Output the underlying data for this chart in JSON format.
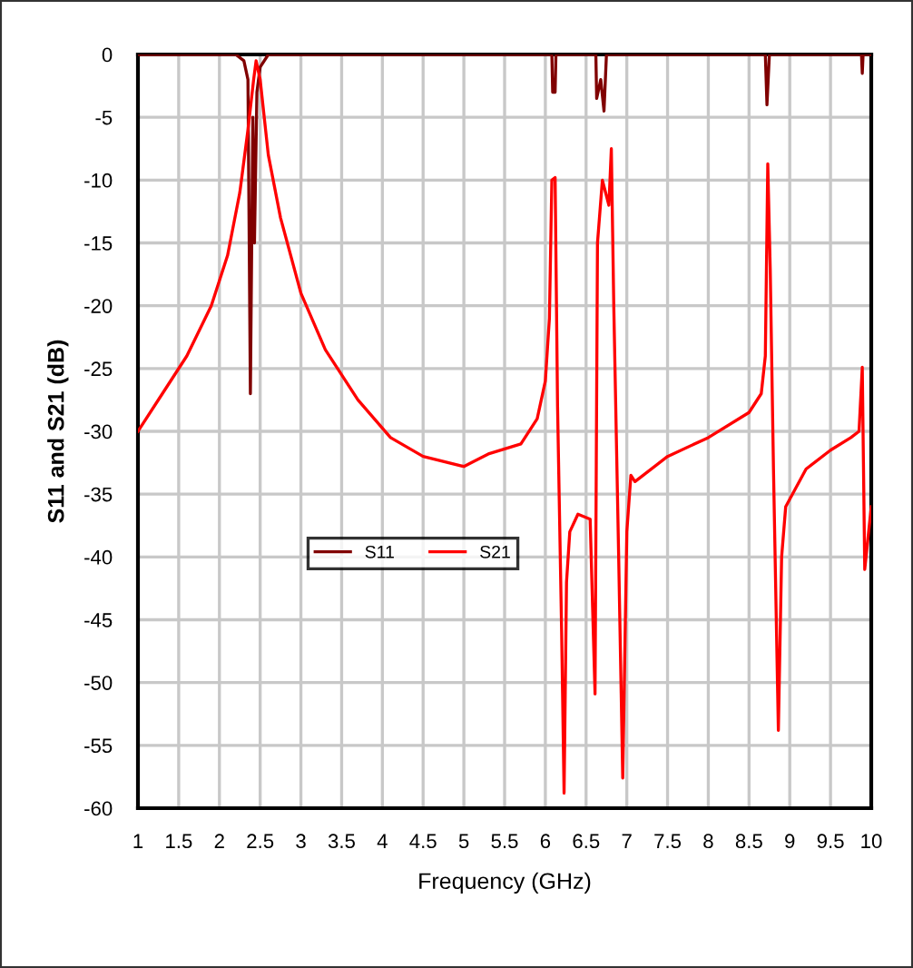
{
  "chart_data": {
    "type": "line",
    "xlabel": "Frequency (GHz)",
    "ylabel": "S11 and S21 (dB)",
    "xlim": [
      1,
      10
    ],
    "xticks": [
      1,
      1.5,
      2,
      2.5,
      3,
      3.5,
      4,
      4.5,
      5,
      5.5,
      6,
      6.5,
      7,
      7.5,
      8,
      8.5,
      9,
      9.5,
      10
    ],
    "ylim": [
      -60,
      0
    ],
    "yticks": [
      -60,
      -55,
      -50,
      -45,
      -40,
      -35,
      -30,
      -25,
      -20,
      -15,
      -10,
      -5,
      0
    ],
    "grid": true,
    "legend": "left",
    "marker": "none",
    "line_style": "solid",
    "series": [
      {
        "name": "S11",
        "color": "#800000",
        "x": [
          1,
          2.2,
          2.3,
          2.35,
          2.38,
          2.41,
          2.43,
          2.46,
          2.5,
          2.6,
          6.08,
          6.09,
          6.12,
          6.13,
          6.62,
          6.63,
          6.68,
          6.72,
          6.75,
          8.7,
          8.72,
          8.75,
          9.88,
          9.89,
          9.9,
          10
        ],
        "values": [
          0,
          0,
          -0.5,
          -2,
          -27,
          -5,
          -15,
          -3,
          -1,
          0,
          0,
          -3,
          -3,
          0,
          0,
          -3.5,
          -2,
          -4.5,
          0,
          0,
          -4,
          0,
          0,
          -1.5,
          0,
          0
        ]
      },
      {
        "name": "S21",
        "color": "#ff0000",
        "x": [
          1,
          1.3,
          1.6,
          1.9,
          2.1,
          2.25,
          2.35,
          2.42,
          2.45,
          2.5,
          2.6,
          2.75,
          3,
          3.3,
          3.7,
          4.1,
          4.5,
          5,
          5.3,
          5.7,
          5.9,
          6,
          6.05,
          6.08,
          6.12,
          6.15,
          6.2,
          6.23,
          6.26,
          6.3,
          6.4,
          6.55,
          6.58,
          6.61,
          6.64,
          6.7,
          6.78,
          6.81,
          6.84,
          6.9,
          6.95,
          7,
          7.05,
          7.1,
          7.5,
          8,
          8.5,
          8.65,
          8.7,
          8.73,
          8.76,
          8.8,
          8.86,
          8.9,
          8.95,
          9.2,
          9.5,
          9.75,
          9.85,
          9.89,
          9.92,
          10
        ],
        "values": [
          -30,
          -27,
          -24,
          -20,
          -16,
          -11,
          -6,
          -2,
          -0.5,
          -2,
          -8,
          -13,
          -19,
          -23.5,
          -27.5,
          -30.5,
          -32,
          -32.8,
          -31.8,
          -31,
          -29,
          -26,
          -21,
          -10,
          -9.8,
          -28,
          -46,
          -58.8,
          -42,
          -38,
          -36.6,
          -37,
          -44,
          -50.9,
          -15,
          -10,
          -12,
          -7.5,
          -20,
          -40,
          -57.6,
          -38,
          -33.5,
          -34,
          -32,
          -30.5,
          -28.5,
          -27,
          -24,
          -8.7,
          -17,
          -33,
          -53.8,
          -40,
          -36,
          -33,
          -31.5,
          -30.5,
          -30,
          -24.9,
          -41,
          -36
        ]
      }
    ]
  }
}
